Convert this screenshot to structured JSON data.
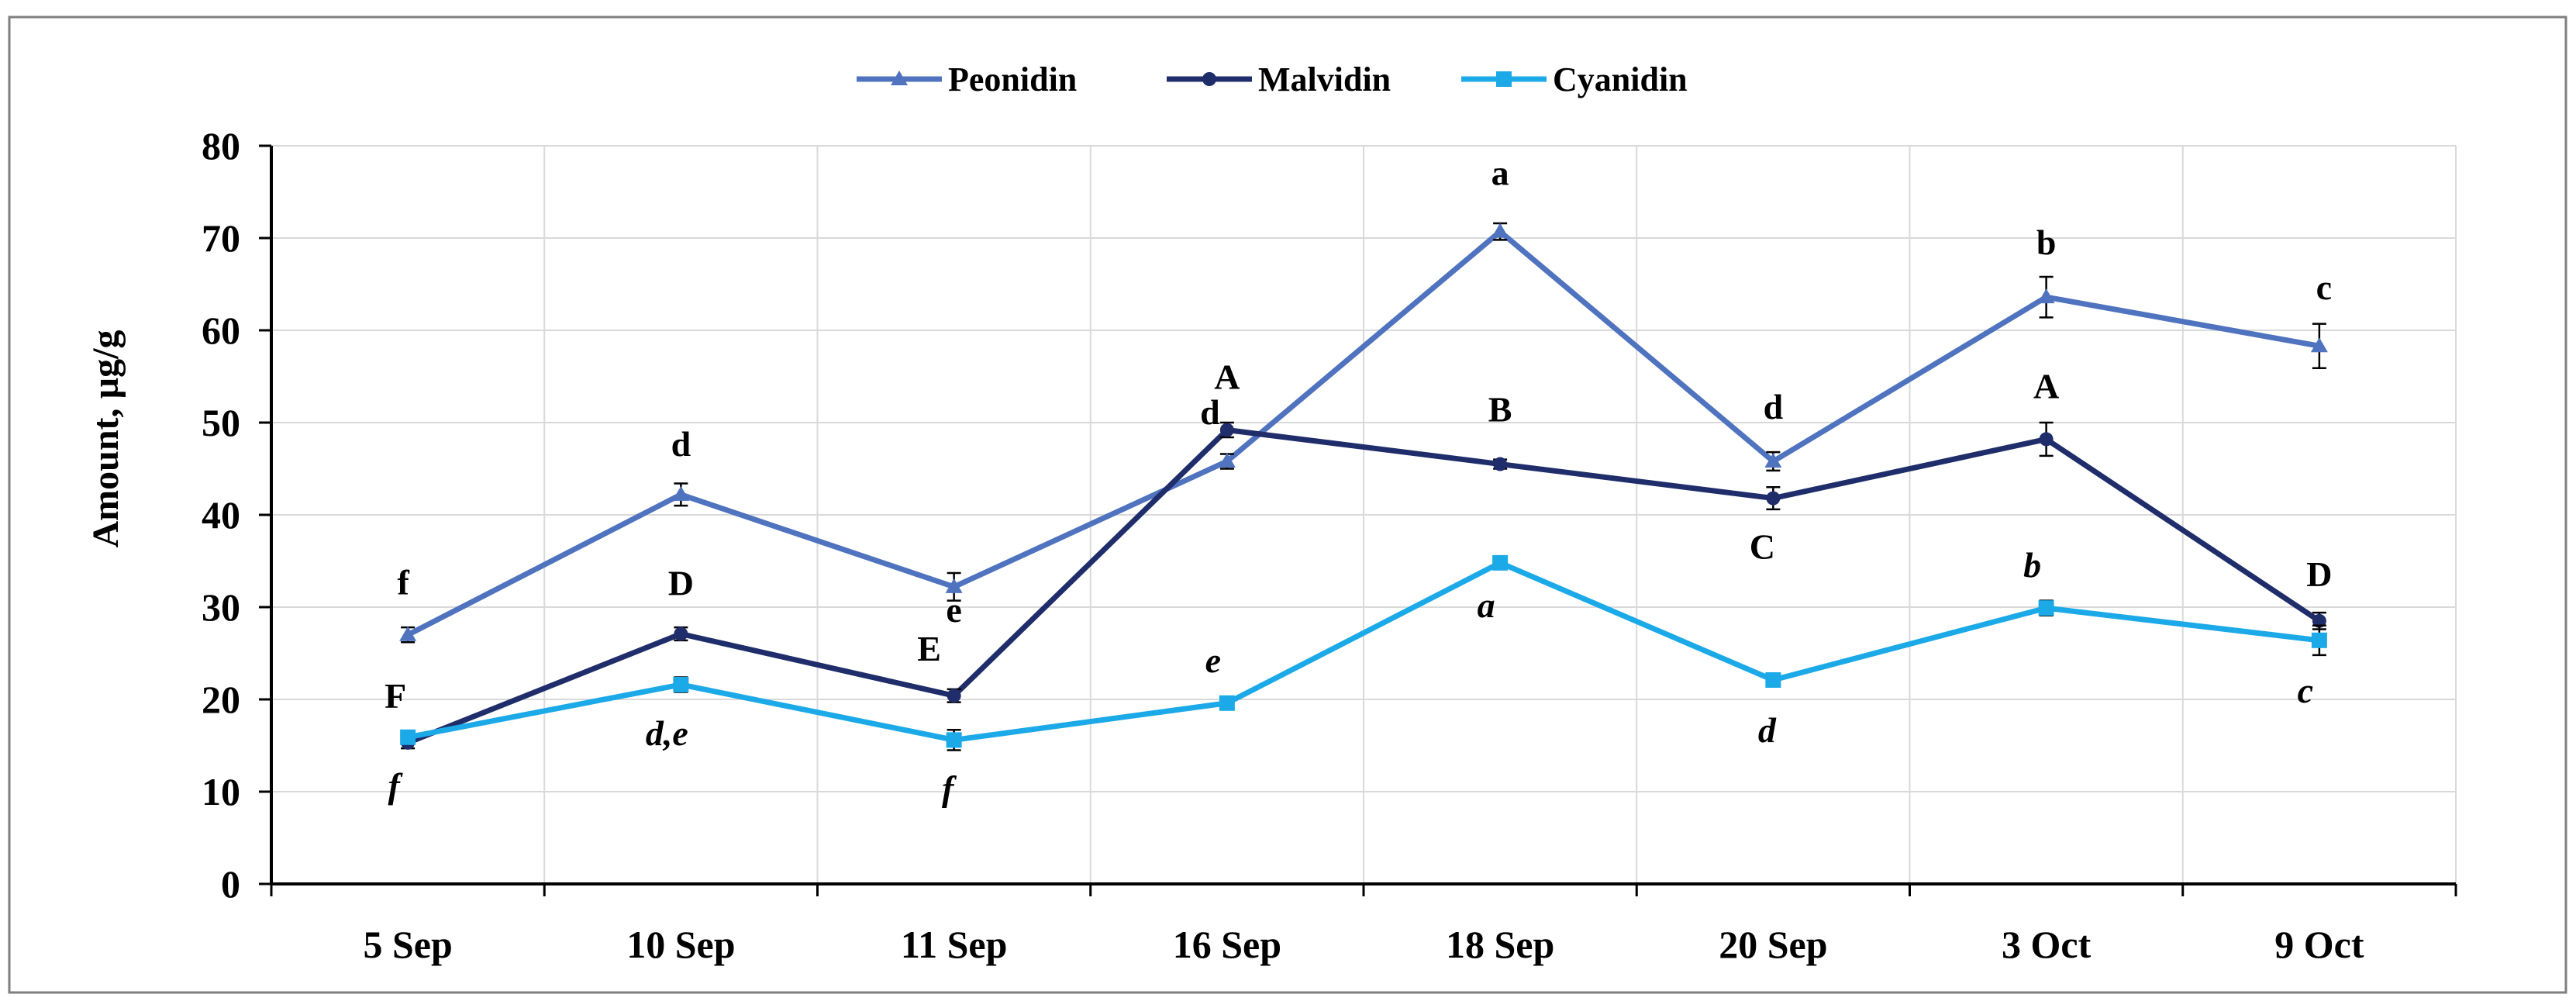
{
  "chart_data": {
    "type": "line",
    "title": "",
    "xlabel": "",
    "ylabel": "Amount,  µg/g",
    "ylim": [
      0,
      80
    ],
    "yticks": [
      0,
      10,
      20,
      30,
      40,
      50,
      60,
      70,
      80
    ],
    "grid": true,
    "legend_position": "top-center",
    "categories": [
      "5 Sep",
      "10 Sep",
      "11 Sep",
      "16 Sep",
      "18 Sep",
      "20 Sep",
      "3 Oct",
      "9 Oct"
    ],
    "series": [
      {
        "name": "Peonidin",
        "color": "#4F73BE",
        "marker": "triangle",
        "values": [
          27,
          42.2,
          32.2,
          45.8,
          70.7,
          45.8,
          63.6,
          58.3
        ],
        "errors": [
          0.8,
          1.2,
          1.5,
          0.8,
          0.9,
          1.0,
          2.2,
          2.4
        ],
        "labels": [
          "f",
          "d",
          "e",
          "d",
          "a",
          "d",
          "b",
          "c"
        ],
        "label_style": "bold"
      },
      {
        "name": "Malvidin",
        "color": "#1F2D6B",
        "marker": "circle",
        "values": [
          15.3,
          27.1,
          20.4,
          49.2,
          45.5,
          41.8,
          48.2,
          28.5
        ],
        "errors": [
          0.6,
          0.7,
          0.7,
          0.8,
          0.5,
          1.2,
          1.8,
          0.9
        ],
        "labels": [
          "F",
          "D",
          "E",
          "A",
          "B",
          "C",
          "A",
          "D"
        ],
        "label_style": "bold"
      },
      {
        "name": "Cyanidin",
        "color": "#1CA9E8",
        "marker": "square",
        "values": [
          15.9,
          21.6,
          15.6,
          19.6,
          34.8,
          22.1,
          29.9,
          26.4
        ],
        "errors": [
          0.5,
          0.8,
          1.1,
          0.5,
          0.6,
          0.6,
          0.8,
          1.6
        ],
        "labels": [
          "f",
          "d,e",
          "f",
          "e",
          "a",
          "d",
          "b",
          "c"
        ],
        "label_style": "italic"
      }
    ]
  }
}
